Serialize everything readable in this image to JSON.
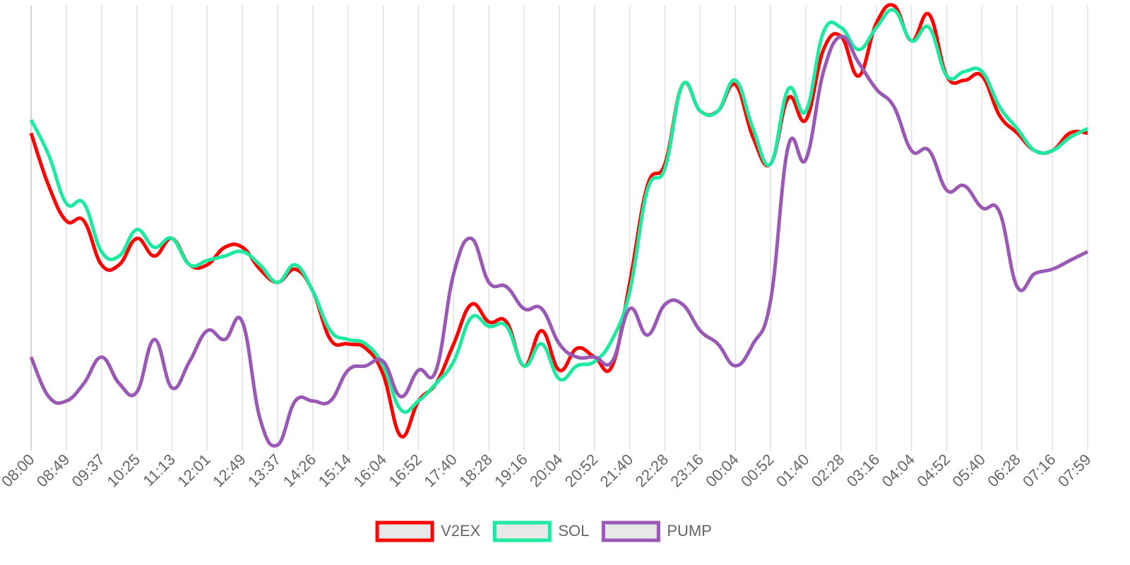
{
  "chart_data": {
    "type": "line",
    "categories": [
      "08:00",
      null,
      "08:49",
      null,
      "09:37",
      null,
      "10:25",
      null,
      "11:13",
      null,
      "12:01",
      null,
      "12:49",
      null,
      "13:37",
      null,
      "14:26",
      null,
      "15:14",
      null,
      "16:04",
      null,
      "16:52",
      null,
      "17:40",
      null,
      "18:28",
      null,
      "19:16",
      null,
      "20:04",
      null,
      "20:52",
      null,
      "21:40",
      null,
      "22:28",
      null,
      "23:16",
      null,
      "00:04",
      null,
      "00:52",
      null,
      "01:40",
      null,
      "02:28",
      null,
      "03:16",
      null,
      "04:04",
      null,
      "04:52",
      null,
      "05:40",
      null,
      "06:28",
      null,
      "07:16",
      null,
      "07:59"
    ],
    "series": [
      {
        "name": "V2EX",
        "color": "#ff0000",
        "values": [
          71,
          59,
          51,
          51,
          41,
          41,
          47,
          43,
          47,
          41,
          41,
          45,
          45,
          40,
          37,
          40,
          35,
          24,
          23,
          22,
          16,
          2,
          10,
          14,
          23,
          32,
          28,
          28,
          18,
          26,
          17,
          22,
          20,
          18,
          37,
          59,
          64,
          82,
          76,
          76,
          82,
          70,
          64,
          79,
          74,
          90,
          93,
          84,
          96,
          100,
          92,
          98,
          84,
          83,
          84,
          75,
          71,
          67,
          67,
          71,
          71
        ]
      },
      {
        "name": "SOL",
        "color": "#1de9a0",
        "values": [
          74,
          66,
          55,
          55,
          44,
          43,
          49,
          45,
          47,
          41,
          42,
          43,
          44,
          41,
          37,
          41,
          35,
          26,
          24,
          23,
          18,
          8,
          10,
          14,
          19,
          29,
          27,
          27,
          18,
          23,
          15,
          18,
          19,
          24,
          35,
          58,
          63,
          82,
          76,
          76,
          83,
          72,
          64,
          81,
          76,
          94,
          95,
          90,
          95,
          99,
          92,
          95,
          84,
          85,
          85,
          77,
          72,
          67,
          67,
          70,
          72
        ]
      },
      {
        "name": "PUMP",
        "color": "#9b59b6",
        "values": [
          20,
          11,
          10,
          14,
          20,
          14,
          12,
          24,
          13,
          19,
          26,
          24,
          28,
          6,
          0,
          10,
          10,
          10,
          17,
          18,
          19,
          11,
          17,
          17,
          39,
          47,
          37,
          36,
          31,
          31,
          23,
          20,
          20,
          19,
          31,
          25,
          32,
          32,
          26,
          23,
          18,
          23,
          33,
          68,
          65,
          85,
          93,
          87,
          81,
          77,
          67,
          67,
          58,
          59,
          54,
          53,
          36,
          39,
          40,
          42,
          44
        ]
      }
    ],
    "ylim": [
      0,
      100
    ],
    "grid": true,
    "legend": "bottom"
  }
}
